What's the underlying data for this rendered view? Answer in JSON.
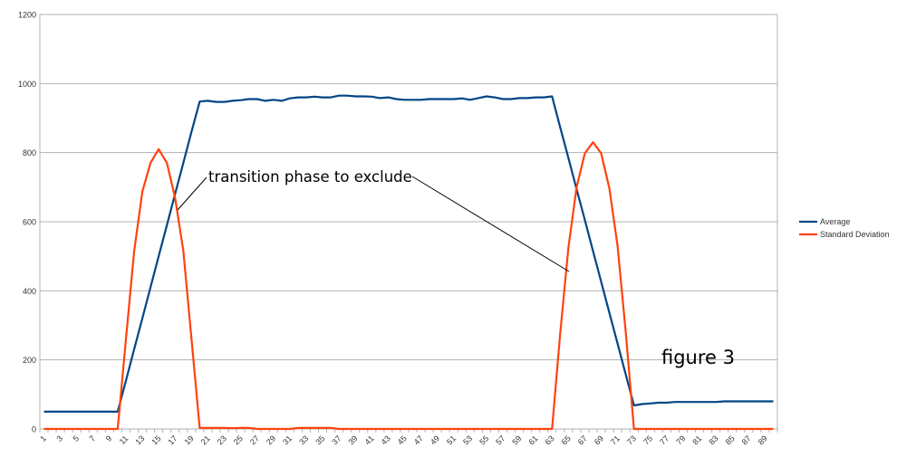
{
  "chart_data": {
    "type": "line",
    "title": "",
    "xlabel": "",
    "ylabel": "",
    "ylim": [
      0,
      1200
    ],
    "yticks": [
      0,
      200,
      400,
      600,
      800,
      1000,
      1200
    ],
    "grid": true,
    "legend_position": "right",
    "x": [
      1,
      2,
      3,
      4,
      5,
      6,
      7,
      8,
      9,
      10,
      11,
      12,
      13,
      14,
      15,
      16,
      17,
      18,
      19,
      20,
      21,
      22,
      23,
      24,
      25,
      26,
      27,
      28,
      29,
      30,
      31,
      32,
      33,
      34,
      35,
      36,
      37,
      38,
      39,
      40,
      41,
      42,
      43,
      44,
      45,
      46,
      47,
      48,
      49,
      50,
      51,
      52,
      53,
      54,
      55,
      56,
      57,
      58,
      59,
      60,
      61,
      62,
      63,
      64,
      65,
      66,
      67,
      68,
      69,
      70,
      71,
      72,
      73,
      74,
      75,
      76,
      77,
      78,
      79,
      80,
      81,
      82,
      83,
      84,
      85,
      86,
      87,
      88,
      89,
      90
    ],
    "xtick_labels": [
      "1",
      "3",
      "5",
      "7",
      "9",
      "11",
      "13",
      "15",
      "17",
      "19",
      "21",
      "23",
      "25",
      "27",
      "29",
      "31",
      "33",
      "35",
      "37",
      "39",
      "41",
      "43",
      "45",
      "47",
      "49",
      "51",
      "53",
      "55",
      "57",
      "59",
      "61",
      "63",
      "65",
      "67",
      "69",
      "71",
      "73",
      "75",
      "77",
      "79",
      "81",
      "83",
      "85",
      "87",
      "89"
    ],
    "series": [
      {
        "name": "Average",
        "color": "#004586",
        "values": [
          50,
          50,
          50,
          50,
          50,
          50,
          50,
          50,
          50,
          50,
          140,
          230,
          320,
          410,
          500,
          590,
          680,
          770,
          860,
          948,
          950,
          947,
          947,
          950,
          952,
          955,
          955,
          950,
          953,
          950,
          957,
          960,
          960,
          962,
          960,
          960,
          965,
          965,
          963,
          963,
          962,
          958,
          960,
          955,
          953,
          953,
          953,
          955,
          955,
          955,
          955,
          957,
          953,
          958,
          963,
          960,
          955,
          955,
          958,
          958,
          960,
          960,
          963,
          873,
          784,
          694,
          605,
          515,
          426,
          336,
          247,
          157,
          68,
          72,
          74,
          76,
          76,
          78,
          78,
          78,
          78,
          78,
          78,
          80,
          80,
          80,
          80,
          80,
          80,
          80
        ]
      },
      {
        "name": "Standard Deviation",
        "color": "#ff420e",
        "values": [
          0,
          0,
          0,
          0,
          0,
          0,
          0,
          0,
          0,
          0,
          260,
          513,
          687,
          770,
          810,
          770,
          670,
          517,
          262,
          3,
          3,
          3,
          3,
          2,
          3,
          3,
          0,
          0,
          0,
          0,
          0,
          3,
          3,
          3,
          3,
          3,
          0,
          0,
          0,
          0,
          0,
          0,
          0,
          0,
          0,
          0,
          0,
          0,
          0,
          0,
          0,
          0,
          0,
          0,
          0,
          0,
          0,
          0,
          0,
          0,
          0,
          0,
          0,
          277,
          526,
          700,
          798,
          830,
          798,
          696,
          530,
          278,
          0,
          0,
          0,
          0,
          0,
          0,
          0,
          0,
          0,
          0,
          0,
          0,
          0,
          0,
          0,
          0,
          0,
          0
        ]
      }
    ],
    "annotations": {
      "transition": "transition phase to exclude",
      "figure": "figure 3"
    }
  }
}
